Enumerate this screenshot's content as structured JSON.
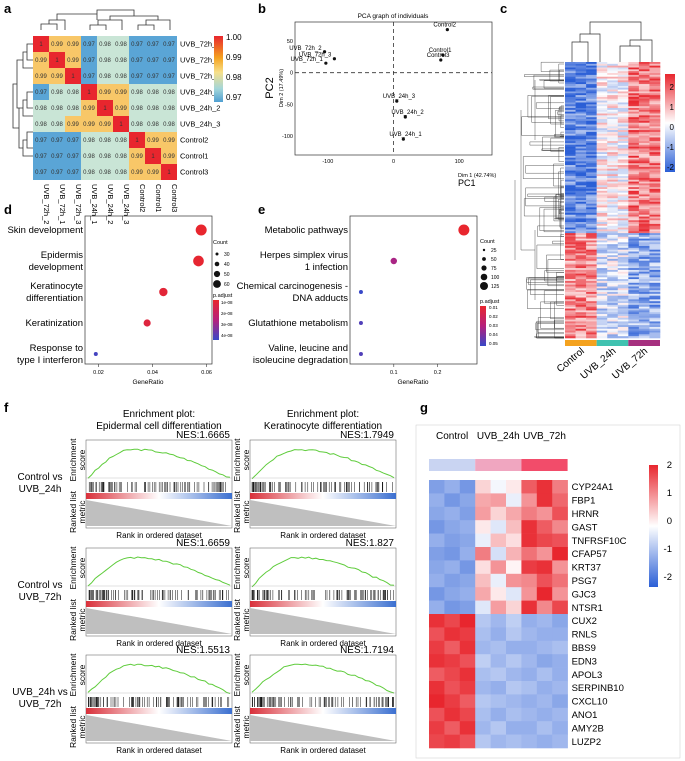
{
  "panel_letters": [
    "a",
    "b",
    "c",
    "d",
    "e",
    "f",
    "g"
  ],
  "colors": {
    "red": "#e8262e",
    "white": "#ffffff",
    "blue": "#2b5fd6",
    "orange": "#f4a21f",
    "teal": "#40c2b0",
    "purple": "#a6307f",
    "yellow": "#f7e08a",
    "lightblue": "#7fc3dd",
    "green": "#5fcc3c",
    "gray": "#a9aaac"
  },
  "chart_data": [
    {
      "panel": "a",
      "type": "heatmap",
      "row_labels": [
        "UVB_72h_2",
        "UVB_72h_1",
        "UVB_72h_3",
        "UVB_24h_1",
        "UVB_24h_2",
        "UVB_24h_3",
        "Control2",
        "Control1",
        "Control3"
      ],
      "col_labels": [
        "UVB_72h_2",
        "UVB_72h_1",
        "UVB_72h_3",
        "UVB_24h_1",
        "UVB_24h_2",
        "UVB_24h_3",
        "Control2",
        "Control1",
        "Control3"
      ],
      "values": [
        [
          "1",
          "0.99",
          "0.99",
          "0.97",
          "0.98",
          "0.98",
          "0.97",
          "0.97",
          "0.97"
        ],
        [
          "0.99",
          "1",
          "0.99",
          "0.97",
          "0.98",
          "0.98",
          "0.97",
          "0.97",
          "0.97"
        ],
        [
          "0.99",
          "0.99",
          "1",
          "0.97",
          "0.98",
          "0.98",
          "0.97",
          "0.97",
          "0.97"
        ],
        [
          "0.97",
          "0.98",
          "0.98",
          "1",
          "0.99",
          "0.99",
          "0.98",
          "0.98",
          "0.98"
        ],
        [
          "0.98",
          "0.98",
          "0.98",
          "0.99",
          "1",
          "0.99",
          "0.98",
          "0.98",
          "0.98"
        ],
        [
          "0.98",
          "0.98",
          "0.99",
          "0.99",
          "0.99",
          "1",
          "0.98",
          "0.98",
          "0.98"
        ],
        [
          "0.97",
          "0.97",
          "0.97",
          "0.98",
          "0.98",
          "0.98",
          "1",
          "0.99",
          "0.99"
        ],
        [
          "0.97",
          "0.97",
          "0.97",
          "0.98",
          "0.98",
          "0.98",
          "0.99",
          "1",
          "0.99"
        ],
        [
          "0.97",
          "0.97",
          "0.97",
          "0.98",
          "0.98",
          "0.98",
          "0.99",
          "0.99",
          "1"
        ]
      ],
      "legend_ticks": [
        "1.00",
        "0.99",
        "0.98",
        "0.97"
      ]
    },
    {
      "panel": "b",
      "type": "scatter",
      "title": "PCA graph of individuals",
      "xlabel": "PC1",
      "ylabel": "PC2",
      "xsub": "Dim 1 (42.74%)",
      "ysub": "Dim 2 (17.49%)",
      "xticks": [
        "-100",
        "0",
        "100"
      ],
      "yticks": [
        "50",
        "0",
        "-50",
        "-100"
      ],
      "xlim": [
        -150,
        150
      ],
      "ylim": [
        -130,
        80
      ],
      "points": [
        {
          "x": 82,
          "y": 68,
          "label": "Control2"
        },
        {
          "x": 75,
          "y": 28,
          "label": "Control1"
        },
        {
          "x": 72,
          "y": 20,
          "label": "Control3"
        },
        {
          "x": -105,
          "y": 33,
          "label": "UVB_72h_2"
        },
        {
          "x": -90,
          "y": 22,
          "label": "UVB_72h_3"
        },
        {
          "x": -103,
          "y": 15,
          "label": "UVB_72h_1"
        },
        {
          "x": 5,
          "y": -45,
          "label": "UVB_24h_3"
        },
        {
          "x": 18,
          "y": -70,
          "label": "UVB_24h_2"
        },
        {
          "x": 15,
          "y": -105,
          "label": "UVB_24h_1"
        }
      ]
    },
    {
      "panel": "c",
      "type": "heatmap",
      "groups": [
        "Control",
        "UVB_24h",
        "UVB_72h"
      ],
      "legend_ticks": [
        "2",
        "1",
        "0",
        "-1",
        "-2"
      ]
    },
    {
      "panel": "d",
      "type": "scatter",
      "xlabel": "GeneRatio",
      "xticks": [
        "0.02",
        "0.04",
        "0.06"
      ],
      "xlim": [
        0.015,
        0.062
      ],
      "terms": [
        "Skin development",
        "Epidermis development",
        "Keratinocyte differentiation",
        "Keratinization",
        "Response to type I interferon"
      ],
      "term_lines": [
        [
          "Skin development"
        ],
        [
          "Epidermis",
          "development"
        ],
        [
          "Keratinocyte",
          "differentiation"
        ],
        [
          "Keratinization"
        ],
        [
          "Response to",
          "type I interferon"
        ]
      ],
      "gene_ratio": [
        0.058,
        0.057,
        0.044,
        0.038,
        0.019
      ],
      "count": [
        60,
        58,
        45,
        38,
        20
      ],
      "color_rank": [
        0.0,
        0.02,
        0.06,
        0.1,
        0.95
      ],
      "size_legend_title": "Count",
      "size_legend": [
        "30",
        "40",
        "50",
        "60"
      ],
      "color_legend_title": "p.adjust",
      "color_legend": [
        "1e-08",
        "2e-08",
        "3e-08",
        "4e-08"
      ]
    },
    {
      "panel": "e",
      "type": "scatter",
      "xlabel": "GeneRatio",
      "xticks": [
        "0.1",
        "0.2"
      ],
      "xlim": [
        0.0,
        0.29
      ],
      "terms": [
        "Metabolic pathways",
        "Herpes simplex virus 1 infection",
        "Chemical carcinogenesis - DNA adducts",
        "Glutathione metabolism",
        "Valine, leucine and isoleucine degradation"
      ],
      "term_lines": [
        [
          "Metabolic pathways"
        ],
        [
          "Herpes simplex virus",
          "1 infection"
        ],
        [
          "Chemical carcinogenesis -",
          "DNA adducts"
        ],
        [
          "Glutathione metabolism"
        ],
        [
          "Valine, leucine and",
          "isoleucine degradation"
        ]
      ],
      "gene_ratio": [
        0.26,
        0.1,
        0.025,
        0.025,
        0.025
      ],
      "count": [
        125,
        60,
        25,
        25,
        25
      ],
      "color_rank": [
        0.0,
        0.55,
        1.0,
        0.9,
        0.9
      ],
      "size_legend_title": "Count",
      "size_legend": [
        "25",
        "50",
        "75",
        "100",
        "125"
      ],
      "color_legend_title": "p.adjust",
      "color_legend": [
        "0.01",
        "0.02",
        "0.03",
        "0.04",
        "0.05"
      ]
    },
    {
      "panel": "f",
      "type": "line",
      "columns": [
        "Enrichment plot:\nEpidermal cell differentiation",
        "Enrichment plot:\nKeratinocyte differentiation"
      ],
      "rows": [
        "Control vs\nUVB_24h",
        "Control vs\nUVB_72h",
        "UVB_24h vs\nUVB_72h"
      ],
      "nes": [
        [
          "NES:1.6665",
          "NES:1.7949"
        ],
        [
          "NES:1.6659",
          "NES:1.827"
        ],
        [
          "NES:1.5513",
          "NES:1.7194"
        ]
      ],
      "ylabel_top": "Enrichment\nscore",
      "ylabel_bottom": "Ranked list\nmetric",
      "xlabel": "Rank in ordered dataset"
    },
    {
      "panel": "g",
      "type": "heatmap",
      "groups": [
        "Control",
        "UVB_24h",
        "UVB_72h"
      ],
      "genes": [
        "CYP24A1",
        "FBP1",
        "HRNR",
        "GAST",
        "TNFRSF10C",
        "CFAP57",
        "KRT37",
        "PSG7",
        "GJC3",
        "NTSR1",
        "CUX2",
        "RNLS",
        "BBS9",
        "EDN3",
        "APOL3",
        "SERPINB10",
        "CXCL10",
        "ANO1",
        "AMY2B",
        "LUZP2"
      ],
      "values": [
        [
          -1.2,
          -1.0,
          -1.3,
          0.4,
          -0.1,
          0.2,
          1.5,
          1.9,
          1.2
        ],
        [
          -1.0,
          -1.3,
          -1.1,
          0.8,
          0.9,
          -0.2,
          1.0,
          1.9,
          1.4
        ],
        [
          -1.1,
          -1.0,
          -1.2,
          0.9,
          0.4,
          0.8,
          1.2,
          1.0,
          1.6
        ],
        [
          -1.3,
          -1.1,
          -1.0,
          0.2,
          -0.3,
          0.6,
          1.9,
          1.5,
          1.1
        ],
        [
          -1.0,
          -1.2,
          -1.1,
          -0.2,
          0.6,
          0.3,
          1.9,
          1.7,
          1.6
        ],
        [
          -1.2,
          -1.3,
          -1.0,
          1.2,
          -0.4,
          0.7,
          1.3,
          1.0,
          2.0
        ],
        [
          -1.1,
          -1.0,
          -1.3,
          0.3,
          1.0,
          0.1,
          1.8,
          1.9,
          1.0
        ],
        [
          -1.0,
          -1.2,
          -1.1,
          0.6,
          -0.2,
          1.0,
          1.1,
          1.6,
          1.3
        ],
        [
          -1.3,
          -1.1,
          -1.0,
          0.8,
          0.2,
          -0.3,
          1.0,
          2.2,
          1.0
        ],
        [
          -1.0,
          -1.3,
          -1.2,
          -0.3,
          0.9,
          0.4,
          1.9,
          1.1,
          1.7
        ],
        [
          1.9,
          1.7,
          2.0,
          -0.7,
          -0.9,
          -0.6,
          -1.0,
          -0.9,
          -1.1
        ],
        [
          1.6,
          1.9,
          1.8,
          -0.8,
          -1.0,
          -0.7,
          -0.9,
          -1.0,
          -1.0
        ],
        [
          1.8,
          1.5,
          1.9,
          -0.9,
          -0.8,
          -1.0,
          -1.0,
          -0.9,
          -0.8
        ],
        [
          1.9,
          1.8,
          1.6,
          -0.6,
          -0.9,
          -0.7,
          -0.9,
          -1.1,
          -1.0
        ],
        [
          1.5,
          1.7,
          1.9,
          -0.8,
          -0.7,
          -0.9,
          -1.0,
          -0.8,
          -1.0
        ],
        [
          1.9,
          1.6,
          1.8,
          -0.9,
          -1.0,
          -0.7,
          -0.8,
          -1.0,
          -0.9
        ],
        [
          2.0,
          1.8,
          1.5,
          -0.7,
          -0.8,
          -0.9,
          -1.0,
          -0.9,
          -1.1
        ],
        [
          1.6,
          1.9,
          1.7,
          -0.8,
          -1.0,
          -0.8,
          -0.9,
          -1.0,
          -0.9
        ],
        [
          1.8,
          1.5,
          1.9,
          -0.9,
          -0.7,
          -1.0,
          -1.0,
          -0.8,
          -1.0
        ],
        [
          1.7,
          1.8,
          1.6,
          -0.7,
          -0.9,
          -0.8,
          -0.9,
          -1.0,
          -0.9
        ]
      ],
      "legend_ticks": [
        "2",
        "1",
        "0",
        "-1",
        "-2"
      ]
    }
  ]
}
